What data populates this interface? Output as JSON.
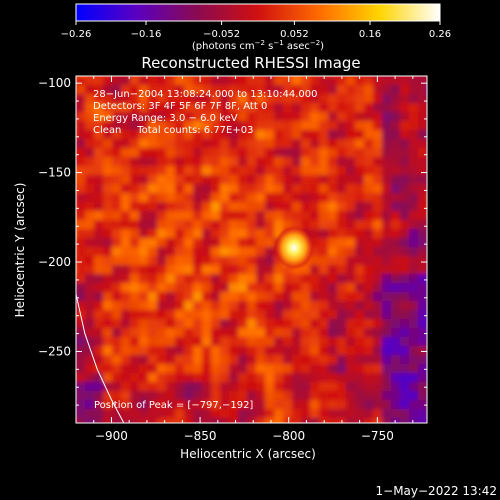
{
  "chart_data": {
    "type": "heatmap",
    "title": "Reconstructed RHESSI Image",
    "xlabel": "Heliocentric X (arcsec)",
    "ylabel": "Heliocentric Y (arcsec)",
    "xlim": [
      -920,
      -722
    ],
    "ylim": [
      -290,
      -96
    ],
    "x_ticks": [
      -900,
      -850,
      -800,
      -750
    ],
    "y_ticks": [
      -100,
      -150,
      -200,
      -250
    ],
    "x_tick_labels": [
      "−900",
      "−850",
      "−800",
      "−750"
    ],
    "y_tick_labels": [
      "−100",
      "−150",
      "−200",
      "−250"
    ],
    "colorbar": {
      "range": [
        -0.26,
        0.26
      ],
      "ticks": [
        -0.26,
        -0.16,
        -0.052,
        0.052,
        0.16,
        0.26
      ],
      "tick_labels": [
        "−0.26",
        "−0.16",
        "−0.052",
        "0.052",
        "0.16",
        "0.26"
      ],
      "units_parts": [
        "(photons cm",
        "−2",
        " s",
        "−1",
        " asec",
        "−2",
        ")"
      ],
      "colors": [
        "#0000ff",
        "#5a00c0",
        "#8b0a50",
        "#d01010",
        "#ff6a00",
        "#ffd400",
        "#ffffff"
      ]
    },
    "annotations": {
      "time_range": "28−Jun−2004 13:08:24.000 to 13:10:44.000",
      "detectors": "Detectors: 3F 4F 5F 6F 7F 8F, Att 0",
      "energy": "Energy Range: 3.0 − 6.0 keV",
      "clean": "Clean     Total counts: 6.77E+03",
      "peak": "Position of Peak = [−797,−192]"
    },
    "peak": {
      "x": -797,
      "y": -192,
      "value": 0.26
    },
    "limb": [
      [
        -920,
        -218
      ],
      [
        -915,
        -240
      ],
      [
        -908,
        -260
      ],
      [
        -900,
        -277
      ],
      [
        -893,
        -290
      ]
    ]
  },
  "footer": {
    "date": "1−May−2022 13:42"
  }
}
